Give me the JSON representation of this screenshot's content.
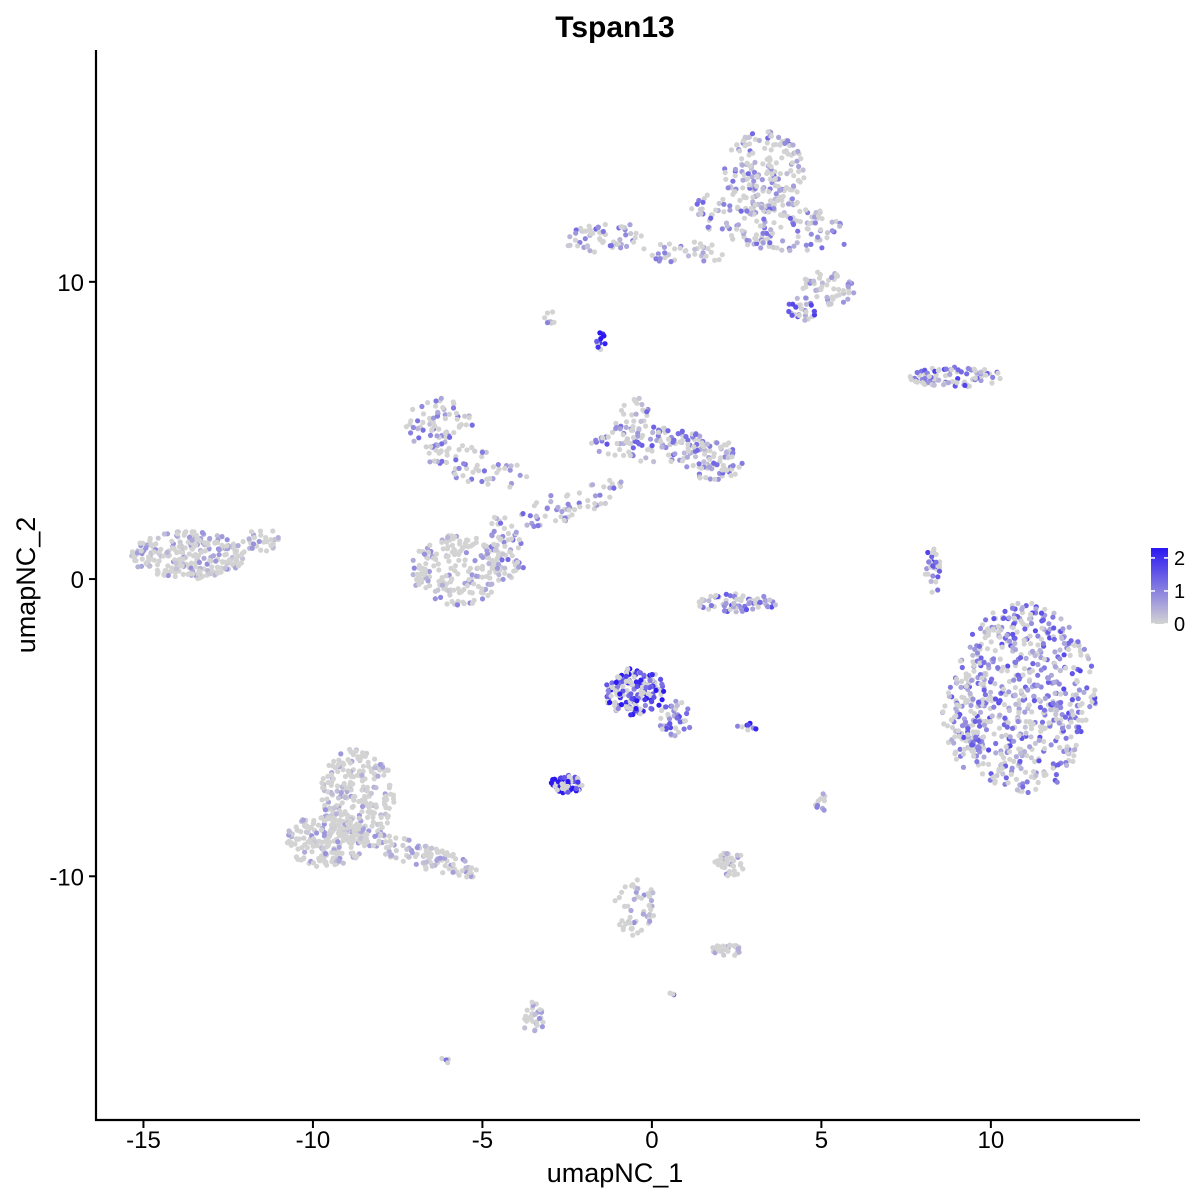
{
  "chart_data": {
    "type": "scatter",
    "title": "Tspan13",
    "xlabel": "umapNC_1",
    "ylabel": "umapNC_2",
    "xlim": [
      -16.4,
      14.4
    ],
    "ylim": [
      -18.2,
      17.8
    ],
    "xticks": [
      -15,
      -10,
      -5,
      0,
      5,
      10
    ],
    "xtick_labels": [
      "-15",
      "-10",
      "-5",
      "0",
      "5",
      "10"
    ],
    "yticks": [
      -10,
      0,
      10
    ],
    "ytick_labels": [
      "-10",
      "0",
      "10"
    ],
    "grid": false,
    "legend": {
      "placement": "right",
      "type": "colorbar",
      "ticks": [
        0,
        1,
        2
      ],
      "tick_labels": [
        "0",
        "1",
        "2"
      ],
      "range": [
        0,
        2.3
      ],
      "low_color": "#d3d3d3",
      "high_color": "#2a17f2"
    },
    "colors": {
      "low": "#d3d3d3",
      "high": "#2a17f2",
      "axis": "#000000"
    },
    "clusters": [
      {
        "cx": 11,
        "cy": -4,
        "rx": 2.1,
        "ry": 3.2,
        "rot": 0,
        "n": 620,
        "expr_mean": 0.9
      },
      {
        "cx": 9.3,
        "cy": -4.8,
        "rx": 0.8,
        "ry": 1.6,
        "rot": 0,
        "n": 80,
        "expr_mean": 0.7
      },
      {
        "cx": 3.3,
        "cy": 13.7,
        "rx": 1.2,
        "ry": 1.4,
        "rot": 0,
        "n": 180,
        "expr_mean": 0.55
      },
      {
        "cx": 3.5,
        "cy": 12,
        "rx": 2.5,
        "ry": 0.9,
        "rot": -0.2,
        "n": 160,
        "expr_mean": 0.6
      },
      {
        "cx": 5.2,
        "cy": 9.8,
        "rx": 0.8,
        "ry": 0.6,
        "rot": 0,
        "n": 50,
        "expr_mean": 0.3
      },
      {
        "cx": 4.5,
        "cy": 9.1,
        "rx": 0.5,
        "ry": 0.4,
        "rot": 0,
        "n": 30,
        "expr_mean": 1.1
      },
      {
        "cx": -1.5,
        "cy": 11.5,
        "rx": 1.2,
        "ry": 0.5,
        "rot": 0.1,
        "n": 60,
        "expr_mean": 0.6
      },
      {
        "cx": 1,
        "cy": 11,
        "rx": 1.3,
        "ry": 0.4,
        "rot": 0,
        "n": 40,
        "expr_mean": 0.3
      },
      {
        "cx": 9,
        "cy": 6.8,
        "rx": 1.4,
        "ry": 0.35,
        "rot": 0,
        "n": 90,
        "expr_mean": 1.0
      },
      {
        "cx": -6.3,
        "cy": 5.2,
        "rx": 1.0,
        "ry": 0.9,
        "rot": 0,
        "n": 70,
        "expr_mean": 0.7
      },
      {
        "cx": -5.2,
        "cy": 3.8,
        "rx": 1.6,
        "ry": 0.6,
        "rot": -0.3,
        "n": 60,
        "expr_mean": 0.5
      },
      {
        "cx": -2.5,
        "cy": 2.5,
        "rx": 1.8,
        "ry": 0.5,
        "rot": 0.4,
        "n": 60,
        "expr_mean": 0.6
      },
      {
        "cx": 0,
        "cy": 4.5,
        "rx": 1.8,
        "ry": 0.6,
        "rot": 0,
        "n": 100,
        "expr_mean": 0.8
      },
      {
        "cx": 1.8,
        "cy": 4,
        "rx": 0.9,
        "ry": 0.7,
        "rot": 0,
        "n": 80,
        "expr_mean": 0.7
      },
      {
        "cx": -0.5,
        "cy": 5.3,
        "rx": 0.6,
        "ry": 0.8,
        "rot": 0,
        "n": 40,
        "expr_mean": 0.6
      },
      {
        "cx": -5.7,
        "cy": 0.3,
        "rx": 1.4,
        "ry": 1.2,
        "rot": 0,
        "n": 200,
        "expr_mean": 0.2
      },
      {
        "cx": -4.3,
        "cy": 1.0,
        "rx": 0.5,
        "ry": 1.2,
        "rot": 0.2,
        "n": 60,
        "expr_mean": 0.5
      },
      {
        "cx": -13.7,
        "cy": 0.8,
        "rx": 1.7,
        "ry": 0.8,
        "rot": 0,
        "n": 260,
        "expr_mean": 0.1
      },
      {
        "cx": -11.5,
        "cy": 1.3,
        "rx": 0.6,
        "ry": 0.4,
        "rot": 0,
        "n": 30,
        "expr_mean": 0.05
      },
      {
        "cx": -8.7,
        "cy": -7.3,
        "rx": 1.1,
        "ry": 1.6,
        "rot": 0,
        "n": 260,
        "expr_mean": 0.02
      },
      {
        "cx": -9.6,
        "cy": -8.8,
        "rx": 1.2,
        "ry": 0.9,
        "rot": 0,
        "n": 200,
        "expr_mean": 0.02
      },
      {
        "cx": -6.8,
        "cy": -9.3,
        "rx": 1.9,
        "ry": 0.4,
        "rot": -0.35,
        "n": 120,
        "expr_mean": 0.02
      },
      {
        "cx": -0.5,
        "cy": -3.8,
        "rx": 0.9,
        "ry": 0.8,
        "rot": 0,
        "n": 160,
        "expr_mean": 1.6
      },
      {
        "cx": 0.7,
        "cy": -4.7,
        "rx": 0.5,
        "ry": 0.6,
        "rot": 0,
        "n": 40,
        "expr_mean": 1.0
      },
      {
        "cx": -2.5,
        "cy": -6.9,
        "rx": 0.5,
        "ry": 0.3,
        "rot": 0,
        "n": 60,
        "expr_mean": 2.2
      },
      {
        "cx": 2.5,
        "cy": -0.8,
        "rx": 1.2,
        "ry": 0.3,
        "rot": 0,
        "n": 70,
        "expr_mean": 0.9
      },
      {
        "cx": 8.3,
        "cy": 0.3,
        "rx": 0.25,
        "ry": 0.8,
        "rot": 0,
        "n": 30,
        "expr_mean": 1.0
      },
      {
        "cx": 2.3,
        "cy": -9.6,
        "rx": 0.5,
        "ry": 0.4,
        "rot": 0,
        "n": 40,
        "expr_mean": 0.05
      },
      {
        "cx": 2.2,
        "cy": -12.5,
        "rx": 0.5,
        "ry": 0.2,
        "rot": 0,
        "n": 30,
        "expr_mean": 0.05
      },
      {
        "cx": -0.5,
        "cy": -11,
        "rx": 0.6,
        "ry": 1.0,
        "rot": 0,
        "n": 50,
        "expr_mean": 0.02
      },
      {
        "cx": -3.5,
        "cy": -14.8,
        "rx": 0.3,
        "ry": 0.6,
        "rot": 0,
        "n": 30,
        "expr_mean": 0.05
      },
      {
        "cx": -1.5,
        "cy": 8.0,
        "rx": 0.15,
        "ry": 0.3,
        "rot": 0,
        "n": 12,
        "expr_mean": 1.8
      },
      {
        "cx": -3,
        "cy": 8.8,
        "rx": 0.2,
        "ry": 0.2,
        "rot": 0,
        "n": 8,
        "expr_mean": 0.8
      },
      {
        "cx": 5,
        "cy": -7.5,
        "rx": 0.2,
        "ry": 0.3,
        "rot": 0,
        "n": 10,
        "expr_mean": 0.3
      },
      {
        "cx": 2.8,
        "cy": -5.0,
        "rx": 0.3,
        "ry": 0.15,
        "rot": 0,
        "n": 8,
        "expr_mean": 1.5
      },
      {
        "cx": -6.1,
        "cy": -16.2,
        "rx": 0.15,
        "ry": 0.1,
        "rot": 0,
        "n": 4,
        "expr_mean": 1.2
      },
      {
        "cx": 0.6,
        "cy": -14.0,
        "rx": 0.1,
        "ry": 0.1,
        "rot": 0,
        "n": 3,
        "expr_mean": 1.2
      }
    ]
  }
}
